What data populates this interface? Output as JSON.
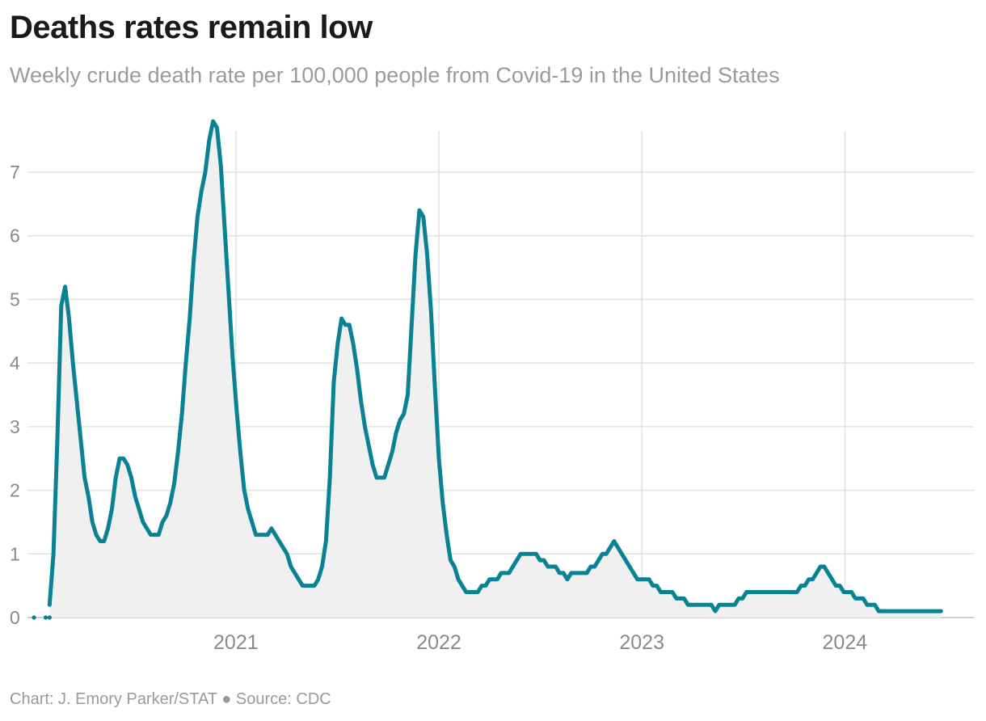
{
  "header": {
    "title": "Deaths rates remain low",
    "subtitle": "Weekly crude death rate per 100,000 people from Covid-19 in the United States"
  },
  "footer": {
    "credit": "Chart: J. Emory Parker/STAT ● Source: CDC"
  },
  "colors": {
    "line": "#0a8294",
    "area": "#f0f0f0",
    "grid": "#e2e2e2",
    "baseline": "#cfcfcf",
    "tick_text": "#8a8a8a"
  },
  "chart_data": {
    "type": "area",
    "title": "Deaths rates remain low",
    "subtitle": "Weekly crude death rate per 100,000 people from Covid-19 in the United States",
    "xlabel": "",
    "ylabel": "",
    "ylim": [
      0,
      7.8
    ],
    "xlim": [
      "2020-01-01",
      "2024-08-20"
    ],
    "y_ticks": [
      "0",
      "1",
      "2",
      "3",
      "4",
      "5",
      "6",
      "7"
    ],
    "x_ticks": [
      "2021",
      "2022",
      "2023",
      "2024"
    ],
    "grid": true,
    "weekly_start": "2020-01-04",
    "series": [
      {
        "values": [
          0,
          0,
          0,
          0,
          0.2,
          1.0,
          2.8,
          4.9,
          5.2,
          4.7,
          4.0,
          3.4,
          2.8,
          2.2,
          1.9,
          1.5,
          1.3,
          1.2,
          1.2,
          1.4,
          1.7,
          2.2,
          2.5,
          2.5,
          2.4,
          2.2,
          1.9,
          1.7,
          1.5,
          1.4,
          1.3,
          1.3,
          1.3,
          1.5,
          1.6,
          1.8,
          2.1,
          2.6,
          3.2,
          4.0,
          4.7,
          5.6,
          6.3,
          6.7,
          7.0,
          7.5,
          7.8,
          7.7,
          7.1,
          6.1,
          5.1,
          4.1,
          3.3,
          2.6,
          2.0,
          1.7,
          1.5,
          1.3,
          1.3,
          1.3,
          1.3,
          1.4,
          1.3,
          1.2,
          1.1,
          1.0,
          0.8,
          0.7,
          0.6,
          0.5,
          0.5,
          0.5,
          0.5,
          0.6,
          0.8,
          1.2,
          2.2,
          3.7,
          4.3,
          4.7,
          4.6,
          4.6,
          4.3,
          3.9,
          3.4,
          3.0,
          2.7,
          2.4,
          2.2,
          2.2,
          2.2,
          2.4,
          2.6,
          2.9,
          3.1,
          3.2,
          3.5,
          4.6,
          5.7,
          6.4,
          6.3,
          5.7,
          4.8,
          3.6,
          2.5,
          1.8,
          1.3,
          0.9,
          0.8,
          0.6,
          0.5,
          0.4,
          0.4,
          0.4,
          0.4,
          0.5,
          0.5,
          0.6,
          0.6,
          0.6,
          0.7,
          0.7,
          0.7,
          0.8,
          0.9,
          1.0,
          1.0,
          1.0,
          1.0,
          1.0,
          0.9,
          0.9,
          0.8,
          0.8,
          0.8,
          0.7,
          0.7,
          0.6,
          0.7,
          0.7,
          0.7,
          0.7,
          0.7,
          0.8,
          0.8,
          0.9,
          1.0,
          1.0,
          1.1,
          1.2,
          1.1,
          1.0,
          0.9,
          0.8,
          0.7,
          0.6,
          0.6,
          0.6,
          0.6,
          0.5,
          0.5,
          0.4,
          0.4,
          0.4,
          0.4,
          0.3,
          0.3,
          0.3,
          0.2,
          0.2,
          0.2,
          0.2,
          0.2,
          0.2,
          0.2,
          0.1,
          0.2,
          0.2,
          0.2,
          0.2,
          0.2,
          0.3,
          0.3,
          0.4,
          0.4,
          0.4,
          0.4,
          0.4,
          0.4,
          0.4,
          0.4,
          0.4,
          0.4,
          0.4,
          0.4,
          0.4,
          0.4,
          0.5,
          0.5,
          0.6,
          0.6,
          0.7,
          0.8,
          0.8,
          0.7,
          0.6,
          0.5,
          0.5,
          0.4,
          0.4,
          0.4,
          0.3,
          0.3,
          0.3,
          0.2,
          0.2,
          0.2,
          0.1,
          0.1,
          0.1,
          0.1,
          0.1,
          0.1,
          0.1,
          0.1,
          0.1,
          0.1,
          0.1,
          0.1,
          0.1,
          0.1,
          0.1,
          0.1,
          0.1
        ]
      }
    ],
    "isolated_points": [
      {
        "x": "2020-01-04",
        "y": 0
      },
      {
        "x": "2020-01-25",
        "y": 0
      },
      {
        "x": "2020-02-01",
        "y": 0
      }
    ]
  }
}
